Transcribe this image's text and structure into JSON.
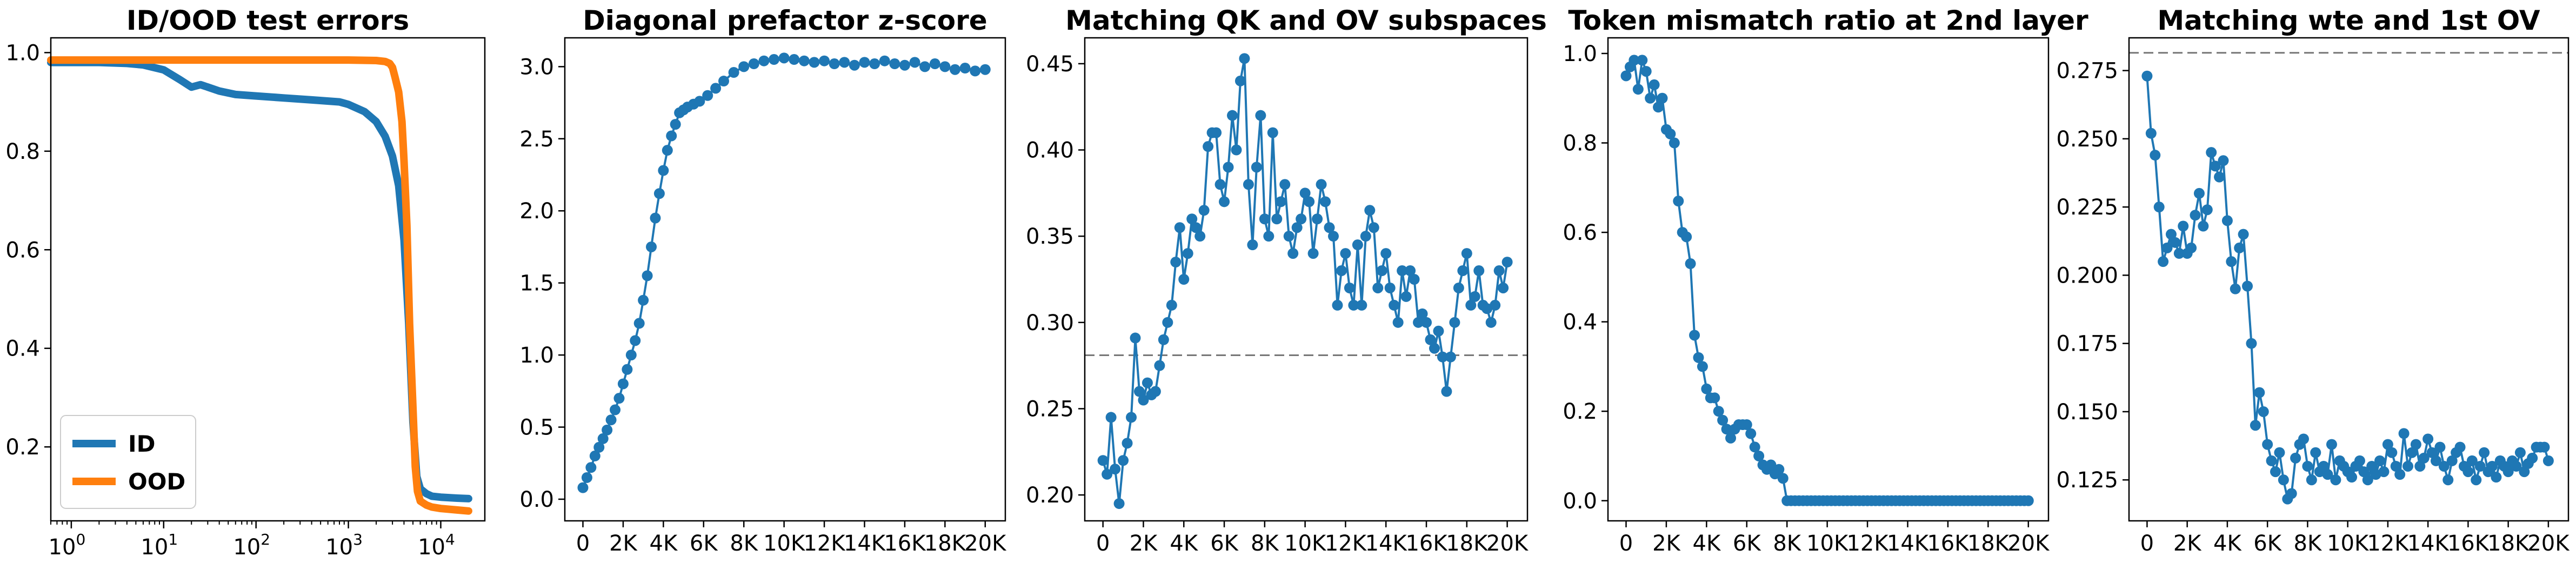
{
  "colors": {
    "blue": "#1f77b4",
    "orange": "#ff7f0e",
    "reference": "#777777"
  },
  "chart_data": [
    {
      "type": "line",
      "title": "ID/OOD test errors",
      "xscale": "log",
      "xlim": [
        0.6,
        30000
      ],
      "ylim": [
        0.05,
        1.03
      ],
      "yticks": [
        "0.2",
        "0.4",
        "0.6",
        "0.8",
        "1.0"
      ],
      "xticks": [
        "10",
        "10",
        "10",
        "10",
        "10"
      ],
      "xtick_exponents": [
        "0",
        "1",
        "2",
        "3",
        "4"
      ],
      "legend": {
        "placement": "lower-left",
        "entries": [
          "ID",
          "OOD"
        ]
      },
      "series": [
        {
          "name": "ID",
          "color": "#1f77b4",
          "x": [
            0.6,
            1,
            2,
            4,
            6,
            10,
            15,
            20,
            25,
            30,
            40,
            60,
            100,
            200,
            400,
            800,
            1000,
            1500,
            2000,
            2500,
            3000,
            3500,
            4000,
            4500,
            5000,
            5500,
            6000,
            7000,
            8000,
            10000,
            15000,
            20000
          ],
          "y": [
            0.98,
            0.98,
            0.98,
            0.978,
            0.975,
            0.965,
            0.945,
            0.93,
            0.935,
            0.93,
            0.922,
            0.915,
            0.912,
            0.908,
            0.904,
            0.9,
            0.895,
            0.88,
            0.86,
            0.83,
            0.79,
            0.73,
            0.62,
            0.45,
            0.25,
            0.14,
            0.115,
            0.105,
            0.1,
            0.098,
            0.096,
            0.095
          ]
        },
        {
          "name": "OOD",
          "color": "#ff7f0e",
          "x": [
            0.6,
            1,
            10,
            100,
            1000,
            2000,
            2500,
            2800,
            3000,
            3200,
            3500,
            3800,
            4000,
            4300,
            4600,
            5000,
            5300,
            5600,
            6000,
            7000,
            8000,
            10000,
            15000,
            20000
          ],
          "y": [
            0.985,
            0.985,
            0.985,
            0.985,
            0.985,
            0.984,
            0.982,
            0.978,
            0.97,
            0.95,
            0.92,
            0.86,
            0.78,
            0.65,
            0.45,
            0.28,
            0.16,
            0.11,
            0.09,
            0.082,
            0.078,
            0.075,
            0.072,
            0.07
          ]
        }
      ]
    },
    {
      "type": "scatter",
      "title": "Diagonal prefactor z-score",
      "xlim": [
        -900,
        21000
      ],
      "ylim": [
        -0.15,
        3.2
      ],
      "xticks": [
        "0",
        "2K",
        "4K",
        "6K",
        "8K",
        "10K",
        "12K",
        "14K",
        "16K",
        "18K",
        "20K"
      ],
      "yticks": [
        "0.0",
        "0.5",
        "1.0",
        "1.5",
        "2.0",
        "2.5",
        "3.0"
      ],
      "series": [
        {
          "color": "#1f77b4",
          "x": [
            0,
            200,
            400,
            600,
            800,
            1000,
            1200,
            1400,
            1600,
            1800,
            2000,
            2200,
            2400,
            2600,
            2800,
            3000,
            3200,
            3400,
            3600,
            3800,
            4000,
            4200,
            4400,
            4600,
            4800,
            5000,
            5200,
            5500,
            5800,
            6200,
            6600,
            7000,
            7500,
            8000,
            8500,
            9000,
            9500,
            10000,
            10500,
            11000,
            11500,
            12000,
            12500,
            13000,
            13500,
            14000,
            14500,
            15000,
            15500,
            16000,
            16500,
            17000,
            17500,
            18000,
            18500,
            19000,
            19500,
            20000
          ],
          "y": [
            0.08,
            0.15,
            0.22,
            0.3,
            0.36,
            0.42,
            0.48,
            0.55,
            0.62,
            0.7,
            0.8,
            0.9,
            1.0,
            1.1,
            1.22,
            1.38,
            1.55,
            1.75,
            1.95,
            2.12,
            2.28,
            2.42,
            2.52,
            2.6,
            2.68,
            2.7,
            2.72,
            2.74,
            2.76,
            2.8,
            2.85,
            2.9,
            2.96,
            3.0,
            3.02,
            3.04,
            3.05,
            3.06,
            3.05,
            3.04,
            3.03,
            3.04,
            3.02,
            3.03,
            3.01,
            3.03,
            3.02,
            3.04,
            3.02,
            3.01,
            3.03,
            3.0,
            3.02,
            3.0,
            2.98,
            2.99,
            2.97,
            2.98
          ]
        }
      ]
    },
    {
      "type": "line",
      "title": "Matching QK and OV subspaces",
      "xlim": [
        -900,
        21000
      ],
      "ylim": [
        0.185,
        0.465
      ],
      "xticks": [
        "0",
        "2K",
        "4K",
        "6K",
        "8K",
        "10K",
        "12K",
        "14K",
        "16K",
        "18K",
        "20K"
      ],
      "yticks": [
        "0.20",
        "0.25",
        "0.30",
        "0.35",
        "0.40",
        "0.45"
      ],
      "reference_line": 0.281,
      "series": [
        {
          "color": "#1f77b4",
          "x": [
            0,
            200,
            400,
            600,
            800,
            1000,
            1200,
            1400,
            1600,
            1800,
            2000,
            2200,
            2400,
            2600,
            2800,
            3000,
            3200,
            3400,
            3600,
            3800,
            4000,
            4200,
            4400,
            4600,
            4800,
            5000,
            5200,
            5400,
            5600,
            5800,
            6000,
            6200,
            6400,
            6600,
            6800,
            7000,
            7200,
            7400,
            7600,
            7800,
            8000,
            8200,
            8400,
            8600,
            8800,
            9000,
            9200,
            9400,
            9600,
            9800,
            10000,
            10200,
            10400,
            10600,
            10800,
            11000,
            11200,
            11400,
            11600,
            11800,
            12000,
            12200,
            12400,
            12600,
            12800,
            13000,
            13200,
            13400,
            13600,
            13800,
            14000,
            14200,
            14400,
            14600,
            14800,
            15000,
            15200,
            15400,
            15600,
            15800,
            16000,
            16200,
            16400,
            16600,
            16800,
            17000,
            17200,
            17400,
            17600,
            17800,
            18000,
            18200,
            18400,
            18600,
            18800,
            19000,
            19200,
            19400,
            19600,
            19800,
            20000
          ],
          "y": [
            0.22,
            0.212,
            0.245,
            0.215,
            0.195,
            0.22,
            0.23,
            0.245,
            0.291,
            0.26,
            0.255,
            0.265,
            0.258,
            0.26,
            0.275,
            0.29,
            0.3,
            0.31,
            0.335,
            0.355,
            0.325,
            0.34,
            0.36,
            0.355,
            0.35,
            0.365,
            0.402,
            0.41,
            0.41,
            0.38,
            0.37,
            0.39,
            0.42,
            0.4,
            0.44,
            0.453,
            0.38,
            0.345,
            0.39,
            0.42,
            0.36,
            0.35,
            0.41,
            0.36,
            0.37,
            0.38,
            0.35,
            0.34,
            0.355,
            0.36,
            0.375,
            0.37,
            0.34,
            0.36,
            0.38,
            0.37,
            0.355,
            0.35,
            0.31,
            0.33,
            0.34,
            0.32,
            0.31,
            0.345,
            0.31,
            0.35,
            0.365,
            0.355,
            0.32,
            0.33,
            0.34,
            0.32,
            0.31,
            0.3,
            0.33,
            0.315,
            0.33,
            0.325,
            0.3,
            0.305,
            0.3,
            0.29,
            0.285,
            0.295,
            0.28,
            0.26,
            0.28,
            0.3,
            0.32,
            0.33,
            0.34,
            0.31,
            0.315,
            0.33,
            0.31,
            0.308,
            0.3,
            0.31,
            0.33,
            0.32,
            0.335
          ]
        }
      ]
    },
    {
      "type": "line",
      "title": "Token mismatch ratio at 2nd layer",
      "xlim": [
        -900,
        21000
      ],
      "ylim": [
        -0.045,
        1.035
      ],
      "xticks": [
        "0",
        "2K",
        "4K",
        "6K",
        "8K",
        "10K",
        "12K",
        "14K",
        "16K",
        "18K",
        "20K"
      ],
      "yticks": [
        "0.0",
        "0.2",
        "0.4",
        "0.6",
        "0.8",
        "1.0"
      ],
      "series": [
        {
          "color": "#1f77b4",
          "x": [
            0,
            200,
            400,
            600,
            800,
            1000,
            1200,
            1400,
            1600,
            1800,
            2000,
            2200,
            2400,
            2600,
            2800,
            3000,
            3200,
            3400,
            3600,
            3800,
            4000,
            4200,
            4400,
            4600,
            4800,
            5000,
            5200,
            5400,
            5600,
            5800,
            6000,
            6200,
            6400,
            6600,
            6800,
            7000,
            7200,
            7400,
            7600,
            7800,
            8000,
            8200,
            8400,
            8600,
            8800,
            9000,
            9200,
            9400,
            9600,
            9800,
            10000,
            10200,
            10400,
            10600,
            10800,
            11000,
            11200,
            11400,
            11600,
            11800,
            12000,
            12200,
            12400,
            12600,
            12800,
            13000,
            13200,
            13400,
            13600,
            13800,
            14000,
            14200,
            14400,
            14600,
            14800,
            15000,
            15200,
            15400,
            15600,
            15800,
            16000,
            16200,
            16400,
            16600,
            16800,
            17000,
            17200,
            17400,
            17600,
            17800,
            18000,
            18200,
            18400,
            18600,
            18800,
            19000,
            19200,
            19400,
            19600,
            19800,
            20000
          ],
          "y": [
            0.95,
            0.97,
            0.985,
            0.92,
            0.985,
            0.96,
            0.9,
            0.93,
            0.88,
            0.9,
            0.83,
            0.82,
            0.8,
            0.67,
            0.6,
            0.59,
            0.53,
            0.37,
            0.32,
            0.3,
            0.25,
            0.23,
            0.23,
            0.2,
            0.18,
            0.16,
            0.14,
            0.16,
            0.17,
            0.17,
            0.17,
            0.15,
            0.12,
            0.1,
            0.08,
            0.07,
            0.08,
            0.06,
            0.07,
            0.05,
            0.0,
            0.0,
            0.0,
            0.0,
            0.0,
            0.0,
            0.0,
            0.0,
            0.0,
            0.0,
            0.0,
            0.0,
            0.0,
            0.0,
            0.0,
            0.0,
            0.0,
            0.0,
            0.0,
            0.0,
            0.0,
            0.0,
            0.0,
            0.0,
            0.0,
            0.0,
            0.0,
            0.0,
            0.0,
            0.0,
            0.0,
            0.0,
            0.0,
            0.0,
            0.0,
            0.0,
            0.0,
            0.0,
            0.0,
            0.0,
            0.0,
            0.0,
            0.0,
            0.0,
            0.0,
            0.0,
            0.0,
            0.0,
            0.0,
            0.0,
            0.0,
            0.0,
            0.0,
            0.0,
            0.0,
            0.0,
            0.0,
            0.0,
            0.0,
            0.0,
            0.0
          ]
        }
      ]
    },
    {
      "type": "line",
      "title": "Matching wte and 1st OV",
      "xlim": [
        -900,
        21000
      ],
      "ylim": [
        0.11,
        0.287
      ],
      "xticks": [
        "0",
        "2K",
        "4K",
        "6K",
        "8K",
        "10K",
        "12K",
        "14K",
        "16K",
        "18K",
        "20K"
      ],
      "yticks": [
        "0.125",
        "0.150",
        "0.175",
        "0.200",
        "0.225",
        "0.250",
        "0.275"
      ],
      "reference_line": 0.2815,
      "series": [
        {
          "color": "#1f77b4",
          "x": [
            0,
            200,
            400,
            600,
            800,
            1000,
            1200,
            1400,
            1600,
            1800,
            2000,
            2200,
            2400,
            2600,
            2800,
            3000,
            3200,
            3400,
            3600,
            3800,
            4000,
            4200,
            4400,
            4600,
            4800,
            5000,
            5200,
            5400,
            5600,
            5800,
            6000,
            6200,
            6400,
            6600,
            6800,
            7000,
            7200,
            7400,
            7600,
            7800,
            8000,
            8200,
            8400,
            8600,
            8800,
            9000,
            9200,
            9400,
            9600,
            9800,
            10000,
            10200,
            10400,
            10600,
            10800,
            11000,
            11200,
            11400,
            11600,
            11800,
            12000,
            12200,
            12400,
            12600,
            12800,
            13000,
            13200,
            13400,
            13600,
            13800,
            14000,
            14200,
            14400,
            14600,
            14800,
            15000,
            15200,
            15400,
            15600,
            15800,
            16000,
            16200,
            16400,
            16600,
            16800,
            17000,
            17200,
            17400,
            17600,
            17800,
            18000,
            18200,
            18400,
            18600,
            18800,
            19000,
            19200,
            19400,
            19600,
            19800,
            20000
          ],
          "y": [
            0.273,
            0.252,
            0.244,
            0.225,
            0.205,
            0.21,
            0.215,
            0.212,
            0.208,
            0.218,
            0.208,
            0.21,
            0.222,
            0.23,
            0.218,
            0.224,
            0.245,
            0.24,
            0.236,
            0.242,
            0.22,
            0.205,
            0.195,
            0.21,
            0.215,
            0.196,
            0.175,
            0.145,
            0.157,
            0.15,
            0.138,
            0.132,
            0.128,
            0.135,
            0.125,
            0.118,
            0.12,
            0.133,
            0.138,
            0.14,
            0.13,
            0.125,
            0.135,
            0.128,
            0.13,
            0.127,
            0.138,
            0.125,
            0.132,
            0.13,
            0.128,
            0.126,
            0.13,
            0.132,
            0.128,
            0.125,
            0.13,
            0.127,
            0.132,
            0.128,
            0.138,
            0.135,
            0.13,
            0.127,
            0.142,
            0.13,
            0.135,
            0.138,
            0.13,
            0.133,
            0.14,
            0.135,
            0.132,
            0.137,
            0.13,
            0.125,
            0.132,
            0.135,
            0.137,
            0.13,
            0.128,
            0.132,
            0.125,
            0.13,
            0.135,
            0.128,
            0.13,
            0.126,
            0.132,
            0.13,
            0.128,
            0.132,
            0.13,
            0.135,
            0.128,
            0.131,
            0.133,
            0.137,
            0.137,
            0.137,
            0.132
          ]
        }
      ]
    }
  ]
}
